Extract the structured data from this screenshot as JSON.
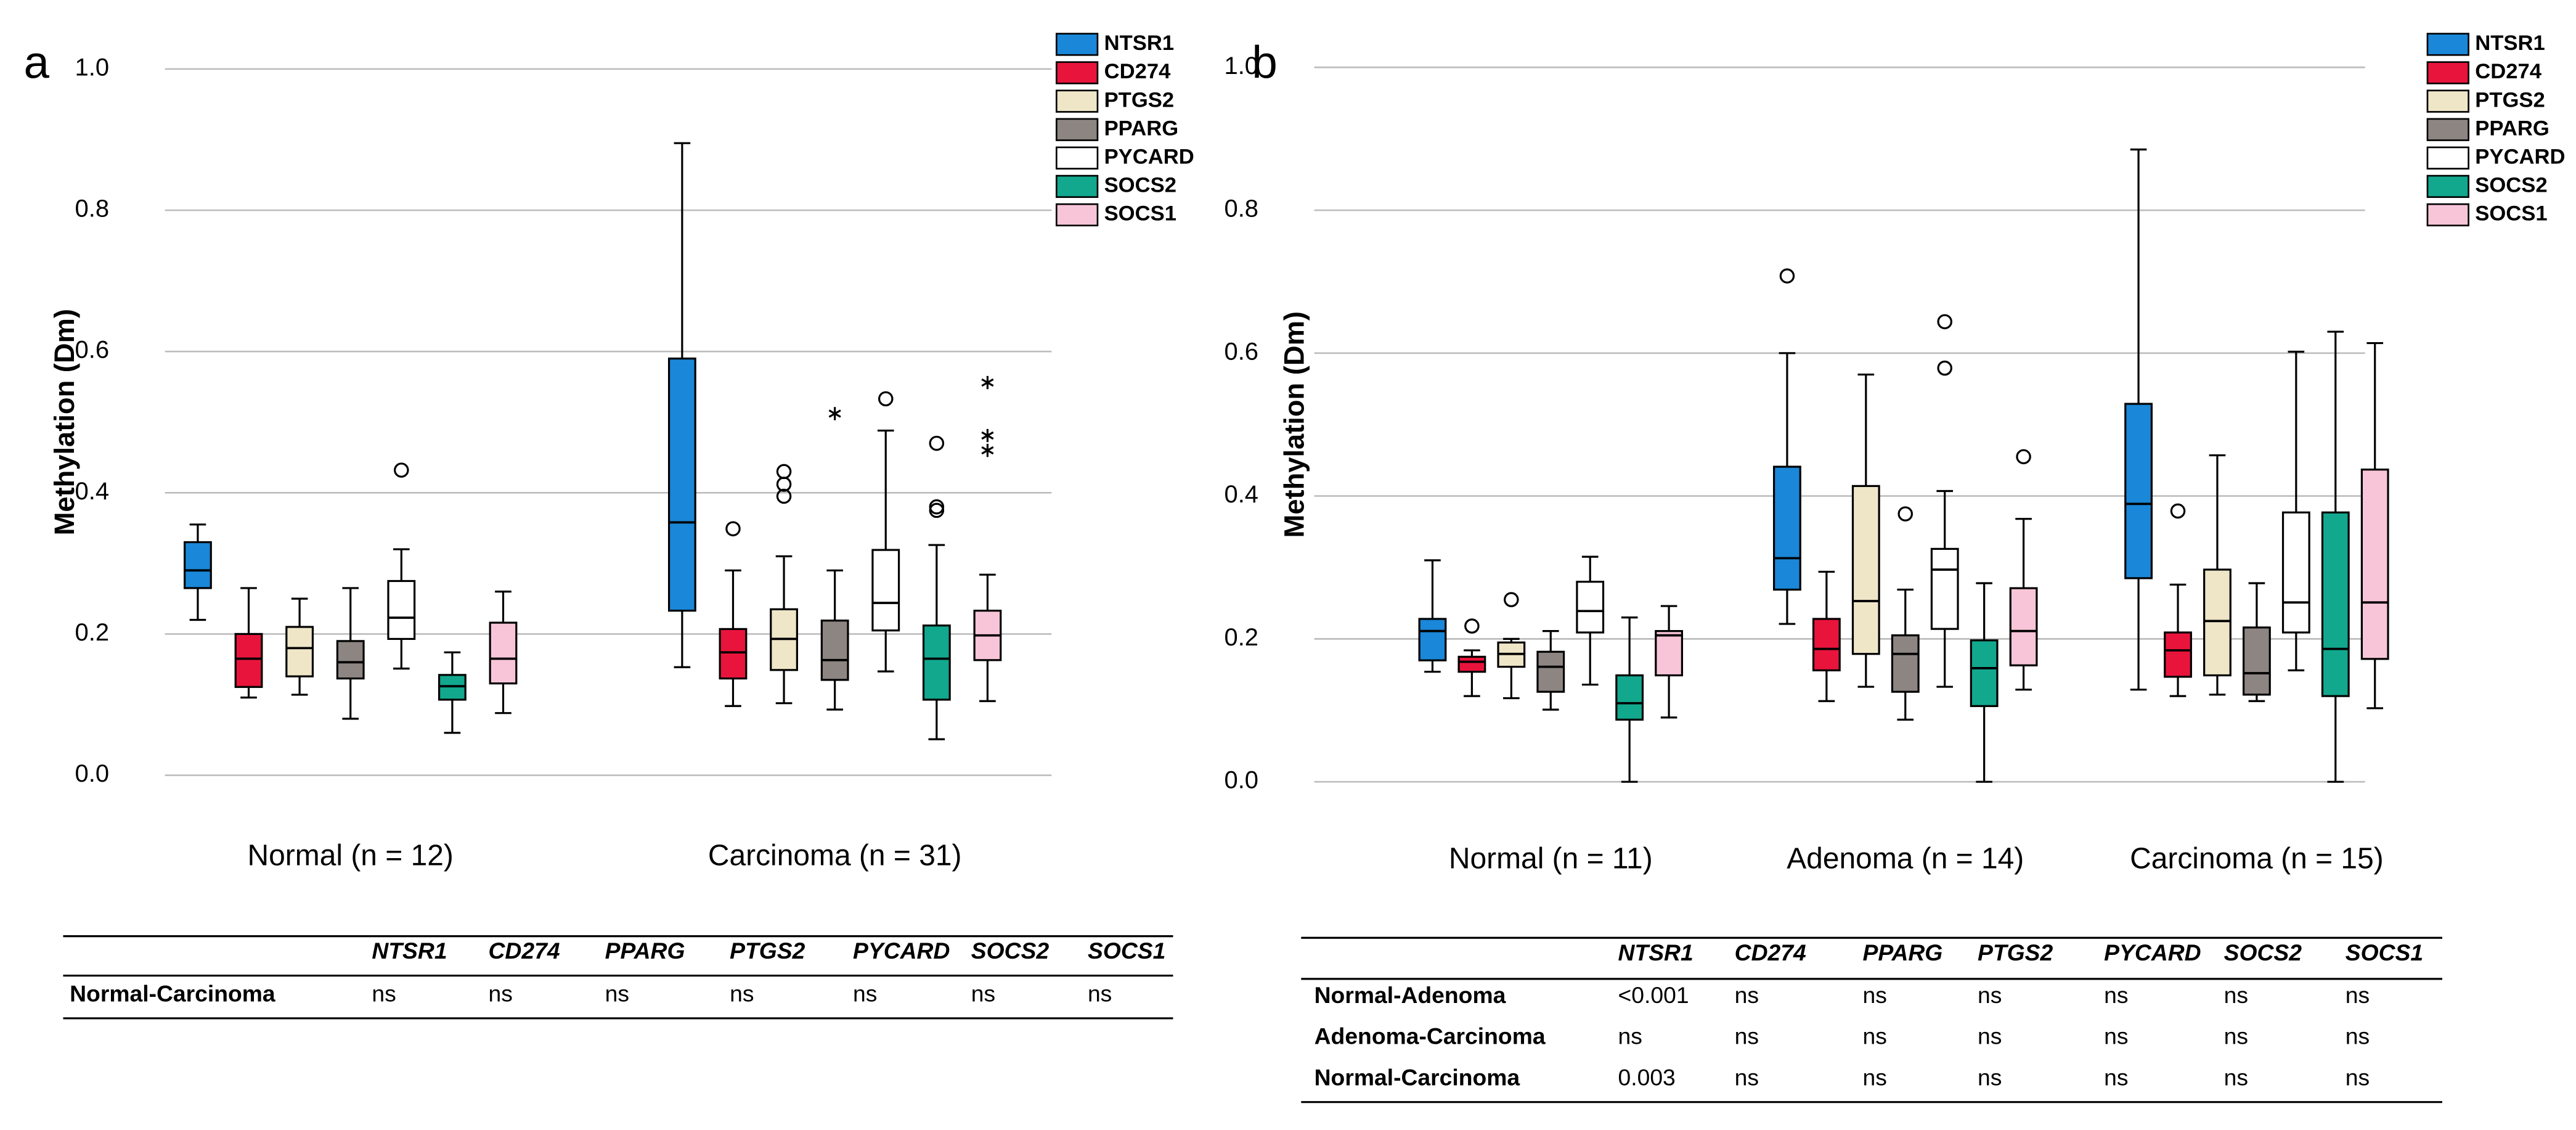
{
  "panel_labels": [
    "a",
    "b"
  ],
  "chart_data": [
    {
      "type": "box",
      "y_label": "Methylation (Dm)",
      "ylim": [
        0,
        1
      ],
      "yticks": [
        {
          "value": 0,
          "label": "0.0"
        },
        {
          "value": 0.2,
          "label": "0.2"
        },
        {
          "value": 0.4,
          "label": "0.4"
        },
        {
          "value": 0.6,
          "label": "0.6"
        },
        {
          "value": 0.8,
          "label": "0.8"
        },
        {
          "value": 1,
          "label": "1.0"
        }
      ],
      "grid": true,
      "legend": "upper right",
      "categories": [
        "Normal (n = 12)",
        "Carcinoma (n = 31)"
      ],
      "series": [
        {
          "name": "NTSR1",
          "color": "#1a87d8",
          "values": [
            {
              "min": 0.22,
              "q1": 0.265,
              "median": 0.29,
              "q3": 0.33,
              "max": 0.355
            },
            {
              "min": 0.153,
              "q1": 0.233,
              "median": 0.358,
              "q3": 0.59,
              "max": 0.895
            }
          ]
        },
        {
          "name": "CD274",
          "color": "#e8143c",
          "values": [
            {
              "min": 0.11,
              "q1": 0.125,
              "median": 0.165,
              "q3": 0.2,
              "max": 0.265
            },
            {
              "min": 0.098,
              "q1": 0.137,
              "median": 0.174,
              "q3": 0.207,
              "max": 0.29,
              "outliers": [
                0.349
              ]
            }
          ]
        },
        {
          "name": "PTGS2",
          "color": "#efe6c8",
          "values": [
            {
              "min": 0.114,
              "q1": 0.14,
              "median": 0.18,
              "q3": 0.21,
              "max": 0.25
            },
            {
              "min": 0.102,
              "q1": 0.149,
              "median": 0.193,
              "q3": 0.235,
              "max": 0.31,
              "outliers": [
                0.43,
                0.412,
                0.395
              ]
            }
          ]
        },
        {
          "name": "PPARG",
          "color": "#8c8582",
          "values": [
            {
              "min": 0.08,
              "q1": 0.137,
              "median": 0.16,
              "q3": 0.19,
              "max": 0.265
            },
            {
              "min": 0.093,
              "q1": 0.135,
              "median": 0.163,
              "q3": 0.219,
              "max": 0.29,
              "extremes": [
                0.512
              ]
            }
          ]
        },
        {
          "name": "PYCARD",
          "color": "#ffffff",
          "values": [
            {
              "min": 0.151,
              "q1": 0.193,
              "median": 0.223,
              "q3": 0.275,
              "max": 0.32,
              "outliers": [
                0.432
              ]
            },
            {
              "min": 0.147,
              "q1": 0.205,
              "median": 0.244,
              "q3": 0.319,
              "max": 0.488,
              "outliers": [
                0.533
              ]
            }
          ]
        },
        {
          "name": "SOCS2",
          "color": "#12a88e",
          "values": [
            {
              "min": 0.06,
              "q1": 0.107,
              "median": 0.126,
              "q3": 0.142,
              "max": 0.174
            },
            {
              "min": 0.051,
              "q1": 0.107,
              "median": 0.165,
              "q3": 0.212,
              "max": 0.326,
              "outliers": [
                0.47,
                0.38,
                0.375
              ]
            }
          ]
        },
        {
          "name": "SOCS1",
          "color": "#f8c5d8",
          "values": [
            {
              "min": 0.088,
              "q1": 0.13,
              "median": 0.165,
              "q3": 0.216,
              "max": 0.26
            },
            {
              "min": 0.105,
              "q1": 0.163,
              "median": 0.198,
              "q3": 0.233,
              "max": 0.284,
              "extremes": [
                0.556,
                0.481,
                0.46
              ]
            }
          ]
        }
      ]
    },
    {
      "type": "box",
      "y_label": "Methylation (Dm)",
      "ylim": [
        0,
        1
      ],
      "yticks": [
        {
          "value": 0,
          "label": "0.0"
        },
        {
          "value": 0.2,
          "label": "0.2"
        },
        {
          "value": 0.4,
          "label": "0.4"
        },
        {
          "value": 0.6,
          "label": "0.6"
        },
        {
          "value": 0.8,
          "label": "0.8"
        },
        {
          "value": 1,
          "label": "1.0"
        }
      ],
      "grid": true,
      "legend": "upper right",
      "categories": [
        "Normal (n = 11)",
        "Adenoma (n = 14)",
        "Carcinoma (n = 15)"
      ],
      "series": [
        {
          "name": "NTSR1",
          "color": "#1a87d8",
          "values": [
            {
              "min": 0.154,
              "q1": 0.17,
              "median": 0.211,
              "q3": 0.228,
              "max": 0.31
            },
            {
              "min": 0.221,
              "q1": 0.269,
              "median": 0.313,
              "q3": 0.441,
              "max": 0.6,
              "outliers": [
                0.708
              ]
            },
            {
              "min": 0.129,
              "q1": 0.285,
              "median": 0.389,
              "q3": 0.529,
              "max": 0.885
            }
          ]
        },
        {
          "name": "CD274",
          "color": "#e8143c",
          "values": [
            {
              "min": 0.12,
              "q1": 0.154,
              "median": 0.168,
              "q3": 0.175,
              "max": 0.184,
              "outliers": [
                0.218
              ]
            },
            {
              "min": 0.113,
              "q1": 0.156,
              "median": 0.186,
              "q3": 0.228,
              "max": 0.294
            },
            {
              "min": 0.12,
              "q1": 0.147,
              "median": 0.184,
              "q3": 0.209,
              "max": 0.276,
              "outliers": [
                0.379
              ]
            }
          ]
        },
        {
          "name": "PTGS2",
          "color": "#efe6c8",
          "values": [
            {
              "min": 0.117,
              "q1": 0.161,
              "median": 0.179,
              "q3": 0.195,
              "max": 0.2,
              "outliers": [
                0.255
              ]
            },
            {
              "min": 0.133,
              "q1": 0.179,
              "median": 0.253,
              "q3": 0.414,
              "max": 0.57
            },
            {
              "min": 0.122,
              "q1": 0.149,
              "median": 0.225,
              "q3": 0.297,
              "max": 0.457
            }
          ]
        },
        {
          "name": "PPARG",
          "color": "#8c8582",
          "values": [
            {
              "min": 0.101,
              "q1": 0.126,
              "median": 0.161,
              "q3": 0.182,
              "max": 0.211
            },
            {
              "min": 0.087,
              "q1": 0.126,
              "median": 0.179,
              "q3": 0.205,
              "max": 0.269,
              "outliers": [
                0.375
              ]
            },
            {
              "min": 0.113,
              "q1": 0.122,
              "median": 0.152,
              "q3": 0.216,
              "max": 0.278
            }
          ]
        },
        {
          "name": "PYCARD",
          "color": "#ffffff",
          "values": [
            {
              "min": 0.136,
              "q1": 0.209,
              "median": 0.239,
              "q3": 0.28,
              "max": 0.315
            },
            {
              "min": 0.133,
              "q1": 0.214,
              "median": 0.297,
              "q3": 0.326,
              "max": 0.407,
              "outliers": [
                0.644,
                0.579
              ]
            },
            {
              "min": 0.156,
              "q1": 0.209,
              "median": 0.251,
              "q3": 0.377,
              "max": 0.602
            }
          ]
        },
        {
          "name": "SOCS2",
          "color": "#12a88e",
          "values": [
            {
              "min": 0,
              "q1": 0.087,
              "median": 0.11,
              "q3": 0.149,
              "max": 0.23
            },
            {
              "min": 0,
              "q1": 0.106,
              "median": 0.159,
              "q3": 0.198,
              "max": 0.278
            },
            {
              "min": 0,
              "q1": 0.12,
              "median": 0.186,
              "q3": 0.377,
              "max": 0.63
            }
          ]
        },
        {
          "name": "SOCS1",
          "color": "#f8c5d8",
          "values": [
            {
              "min": 0.09,
              "q1": 0.149,
              "median": 0.205,
              "q3": 0.211,
              "max": 0.246
            },
            {
              "min": 0.129,
              "q1": 0.163,
              "median": 0.211,
              "q3": 0.271,
              "max": 0.368,
              "outliers": [
                0.455
              ]
            },
            {
              "min": 0.103,
              "q1": 0.172,
              "median": 0.251,
              "q3": 0.437,
              "max": 0.614
            }
          ]
        }
      ]
    }
  ],
  "tables": [
    {
      "columns": [
        "NTSR1",
        "CD274",
        "PPARG",
        "PTGS2",
        "PYCARD",
        "SOCS2",
        "SOCS1"
      ],
      "rows": [
        [
          "Normal-Carcinoma",
          "ns",
          "ns",
          "ns",
          "ns",
          "ns",
          "ns",
          "ns"
        ]
      ]
    },
    {
      "columns": [
        "NTSR1",
        "CD274",
        "PPARG",
        "PTGS2",
        "PYCARD",
        "SOCS2",
        "SOCS1"
      ],
      "rows": [
        [
          "Normal-Adenoma",
          "<0.001",
          "ns",
          "ns",
          "ns",
          "ns",
          "ns",
          "ns"
        ],
        [
          "Adenoma-Carcinoma",
          "ns",
          "ns",
          "ns",
          "ns",
          "ns",
          "ns",
          "ns"
        ],
        [
          "Normal-Carcinoma",
          "0.003",
          "ns",
          "ns",
          "ns",
          "ns",
          "ns",
          "ns"
        ]
      ]
    }
  ]
}
